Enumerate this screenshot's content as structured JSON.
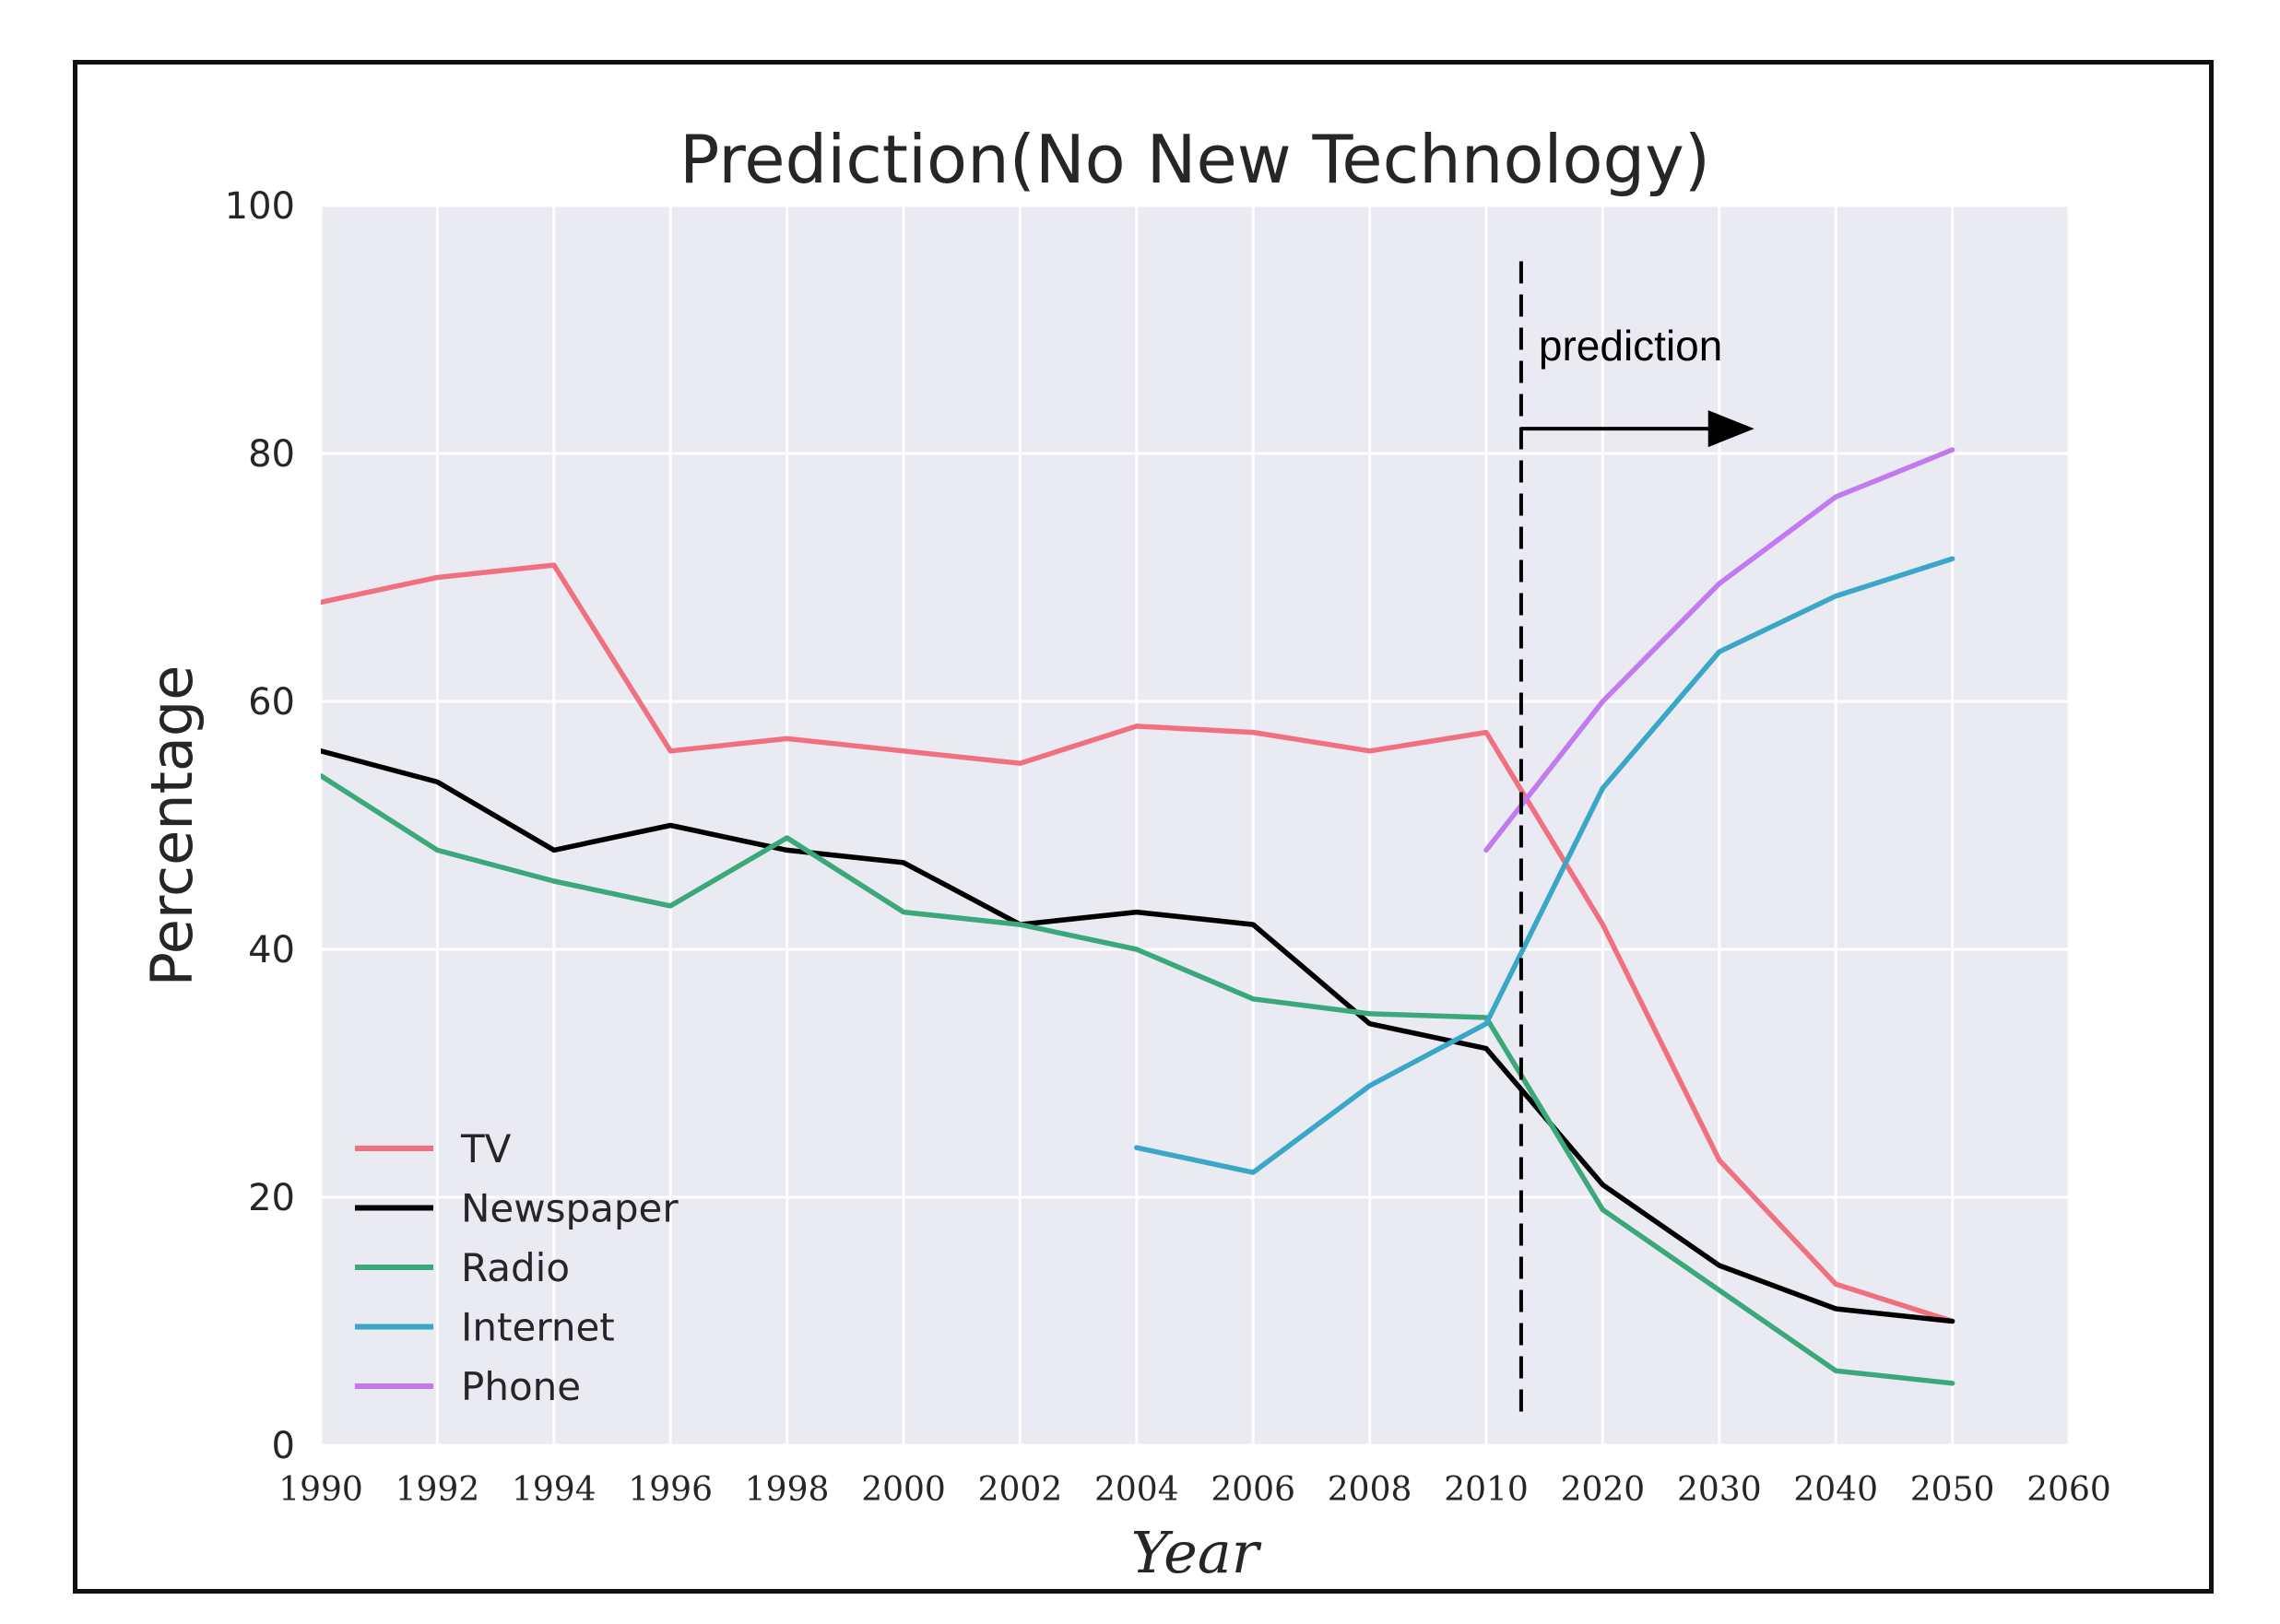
{
  "chart_data": {
    "type": "line",
    "title": "Prediction(No New Technology)",
    "xlabel": "Year",
    "ylabel": "Percentage",
    "categories": [
      "1990",
      "1992",
      "1994",
      "1996",
      "1998",
      "2000",
      "2002",
      "2004",
      "2006",
      "2008",
      "2010",
      "2020",
      "2030",
      "2040",
      "2050",
      "2060"
    ],
    "ylim": [
      0,
      100
    ],
    "yticks": [
      0,
      20,
      40,
      60,
      80,
      100
    ],
    "grid": true,
    "legend_position": "bottom-left",
    "series": [
      {
        "name": "TV",
        "color": "#f07080",
        "points": [
          [
            0,
            68
          ],
          [
            1,
            70
          ],
          [
            2,
            71
          ],
          [
            3,
            56
          ],
          [
            4,
            57
          ],
          [
            5,
            56
          ],
          [
            6,
            55
          ],
          [
            7,
            58
          ],
          [
            8,
            57.5
          ],
          [
            9,
            56
          ],
          [
            10,
            57.5
          ],
          [
            11,
            42
          ],
          [
            12,
            23
          ],
          [
            13,
            13
          ],
          [
            14,
            10
          ]
        ]
      },
      {
        "name": "Newspaper",
        "color": "#000000",
        "points": [
          [
            0,
            56
          ],
          [
            1,
            53.5
          ],
          [
            2,
            48
          ],
          [
            3,
            50
          ],
          [
            4,
            48
          ],
          [
            5,
            47
          ],
          [
            6,
            42
          ],
          [
            7,
            43
          ],
          [
            8,
            42
          ],
          [
            9,
            34
          ],
          [
            10,
            32
          ],
          [
            11,
            21
          ],
          [
            12,
            14.5
          ],
          [
            13,
            11
          ],
          [
            14,
            10
          ]
        ]
      },
      {
        "name": "Radio",
        "color": "#3aa87a",
        "points": [
          [
            0,
            54
          ],
          [
            1,
            48
          ],
          [
            2,
            45.5
          ],
          [
            3,
            43.5
          ],
          [
            4,
            49
          ],
          [
            5,
            43
          ],
          [
            6,
            42
          ],
          [
            7,
            40
          ],
          [
            8,
            36
          ],
          [
            9,
            34.8
          ],
          [
            10,
            34.5
          ],
          [
            11,
            19
          ],
          [
            12,
            12.5
          ],
          [
            13,
            6
          ],
          [
            14,
            5
          ]
        ]
      },
      {
        "name": "Internet",
        "color": "#3aa6c8",
        "points": [
          [
            7,
            24
          ],
          [
            8,
            22
          ],
          [
            9,
            29
          ],
          [
            10,
            34
          ],
          [
            11,
            53
          ],
          [
            12,
            64
          ],
          [
            13,
            68.5
          ],
          [
            14,
            71.5
          ]
        ]
      },
      {
        "name": "Phone",
        "color": "#c27af0",
        "points": [
          [
            10,
            48
          ],
          [
            11,
            60
          ],
          [
            12,
            69.5
          ],
          [
            13,
            76.5
          ],
          [
            14,
            80.3
          ]
        ]
      }
    ],
    "annotations": [
      {
        "type": "vline",
        "x": 10.3,
        "style": "dashed",
        "y_range": [
          2,
          95.5
        ]
      },
      {
        "type": "text",
        "text": "prediction",
        "x": 10.45,
        "y": 87.5
      },
      {
        "type": "arrow",
        "x_from": 10.3,
        "x_to": 12.3,
        "y": 82
      }
    ]
  }
}
